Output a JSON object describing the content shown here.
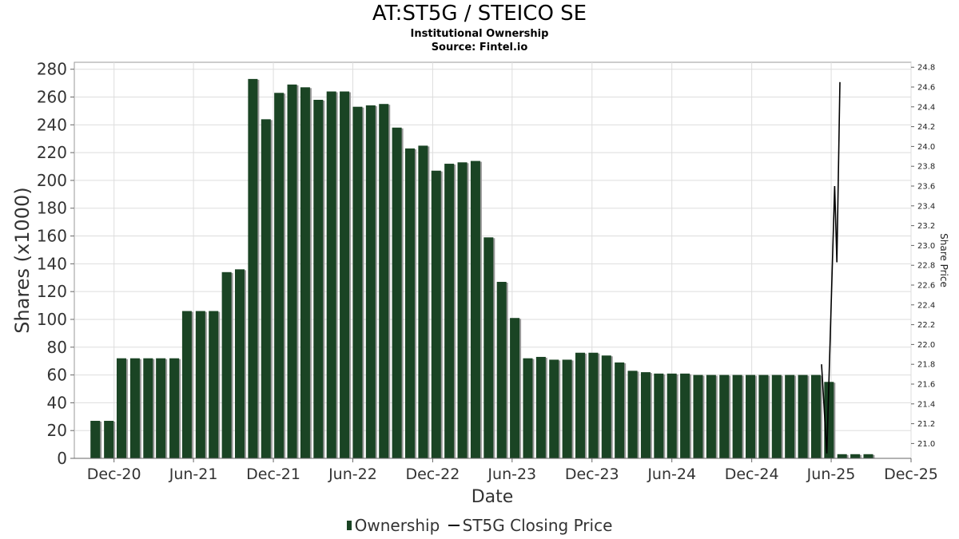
{
  "title": "AT:ST5G / STEICO SE",
  "subtitle_1": "Institutional Ownership",
  "subtitle_2": "Source: Fintel.io",
  "colors": {
    "bar": "#1a4424",
    "bar_shadow": "#999999",
    "price_line": "#000000",
    "grid": "#dddddd"
  },
  "chart_data": {
    "type": "bar",
    "xlabel": "Date",
    "ylabel": "Shares (x1000)",
    "y2label": "Share Price",
    "ylim": [
      0,
      285
    ],
    "y2lim": [
      20.85,
      24.85
    ],
    "xlim": [
      "2020-09-01",
      "2025-12-01"
    ],
    "yticks": [
      0,
      20,
      40,
      60,
      80,
      100,
      120,
      140,
      160,
      180,
      200,
      220,
      240,
      260,
      280
    ],
    "y2ticks": [
      "21.0",
      "21.2",
      "21.4",
      "21.6",
      "21.8",
      "22.0",
      "22.2",
      "22.4",
      "22.6",
      "22.8",
      "23.0",
      "23.2",
      "23.4",
      "23.6",
      "23.8",
      "24.0",
      "24.2",
      "24.4",
      "24.6",
      "24.8"
    ],
    "xticks": [
      {
        "label": "Dec-20",
        "date": "2020-12-01"
      },
      {
        "label": "Jun-21",
        "date": "2021-06-01"
      },
      {
        "label": "Dec-21",
        "date": "2021-12-01"
      },
      {
        "label": "Jun-22",
        "date": "2022-06-01"
      },
      {
        "label": "Dec-22",
        "date": "2022-12-01"
      },
      {
        "label": "Jun-23",
        "date": "2023-06-01"
      },
      {
        "label": "Dec-23",
        "date": "2023-12-01"
      },
      {
        "label": "Jun-24",
        "date": "2024-06-01"
      },
      {
        "label": "Dec-24",
        "date": "2024-12-01"
      },
      {
        "label": "Jun-25",
        "date": "2025-06-01"
      },
      {
        "label": "Dec-25",
        "date": "2025-12-01"
      }
    ],
    "grid": true,
    "legend_position": "bottom",
    "series": [
      {
        "name": "Ownership",
        "type": "bar",
        "points": [
          {
            "date": "2020-10-19",
            "value": 27
          },
          {
            "date": "2020-11-19",
            "value": 27
          },
          {
            "date": "2020-12-18",
            "value": 72
          },
          {
            "date": "2021-01-18",
            "value": 72
          },
          {
            "date": "2021-02-17",
            "value": 72
          },
          {
            "date": "2021-03-18",
            "value": 72
          },
          {
            "date": "2021-04-18",
            "value": 72
          },
          {
            "date": "2021-05-17",
            "value": 106
          },
          {
            "date": "2021-06-17",
            "value": 106
          },
          {
            "date": "2021-07-17",
            "value": 106
          },
          {
            "date": "2021-08-16",
            "value": 134
          },
          {
            "date": "2021-09-15",
            "value": 136
          },
          {
            "date": "2021-10-15",
            "value": 273
          },
          {
            "date": "2021-11-14",
            "value": 244
          },
          {
            "date": "2021-12-14",
            "value": 263
          },
          {
            "date": "2022-01-13",
            "value": 269
          },
          {
            "date": "2022-02-12",
            "value": 267
          },
          {
            "date": "2022-03-14",
            "value": 258
          },
          {
            "date": "2022-04-13",
            "value": 264
          },
          {
            "date": "2022-05-13",
            "value": 264
          },
          {
            "date": "2022-06-12",
            "value": 253
          },
          {
            "date": "2022-07-12",
            "value": 254
          },
          {
            "date": "2022-08-11",
            "value": 255
          },
          {
            "date": "2022-09-10",
            "value": 238
          },
          {
            "date": "2022-10-10",
            "value": 223
          },
          {
            "date": "2022-11-09",
            "value": 225
          },
          {
            "date": "2022-12-09",
            "value": 207
          },
          {
            "date": "2023-01-08",
            "value": 212
          },
          {
            "date": "2023-02-07",
            "value": 213
          },
          {
            "date": "2023-03-09",
            "value": 214
          },
          {
            "date": "2023-04-08",
            "value": 159
          },
          {
            "date": "2023-05-08",
            "value": 127
          },
          {
            "date": "2023-06-07",
            "value": 101
          },
          {
            "date": "2023-07-07",
            "value": 72
          },
          {
            "date": "2023-08-06",
            "value": 73
          },
          {
            "date": "2023-09-05",
            "value": 71
          },
          {
            "date": "2023-10-05",
            "value": 71
          },
          {
            "date": "2023-11-04",
            "value": 76
          },
          {
            "date": "2023-12-04",
            "value": 76
          },
          {
            "date": "2024-01-03",
            "value": 74
          },
          {
            "date": "2024-02-02",
            "value": 69
          },
          {
            "date": "2024-03-03",
            "value": 63
          },
          {
            "date": "2024-04-02",
            "value": 62
          },
          {
            "date": "2024-05-02",
            "value": 61
          },
          {
            "date": "2024-06-01",
            "value": 61
          },
          {
            "date": "2024-07-01",
            "value": 61
          },
          {
            "date": "2024-07-31",
            "value": 60
          },
          {
            "date": "2024-08-30",
            "value": 60
          },
          {
            "date": "2024-09-29",
            "value": 60
          },
          {
            "date": "2024-10-29",
            "value": 60
          },
          {
            "date": "2024-11-28",
            "value": 60
          },
          {
            "date": "2024-12-28",
            "value": 60
          },
          {
            "date": "2025-01-27",
            "value": 60
          },
          {
            "date": "2025-02-26",
            "value": 60
          },
          {
            "date": "2025-03-28",
            "value": 60
          },
          {
            "date": "2025-04-27",
            "value": 60
          },
          {
            "date": "2025-05-27",
            "value": 55
          },
          {
            "date": "2025-06-26",
            "value": 3
          },
          {
            "date": "2025-07-26",
            "value": 3
          },
          {
            "date": "2025-08-25",
            "value": 3
          }
        ]
      },
      {
        "name": "ST5G Closing Price",
        "type": "line",
        "axis": "right",
        "points": [
          {
            "date": "2025-05-10",
            "value": 21.8
          },
          {
            "date": "2025-05-22",
            "value": 20.9
          },
          {
            "date": "2025-06-09",
            "value": 23.6
          },
          {
            "date": "2025-06-14",
            "value": 22.83
          },
          {
            "date": "2025-06-21",
            "value": 24.65
          }
        ]
      }
    ]
  }
}
